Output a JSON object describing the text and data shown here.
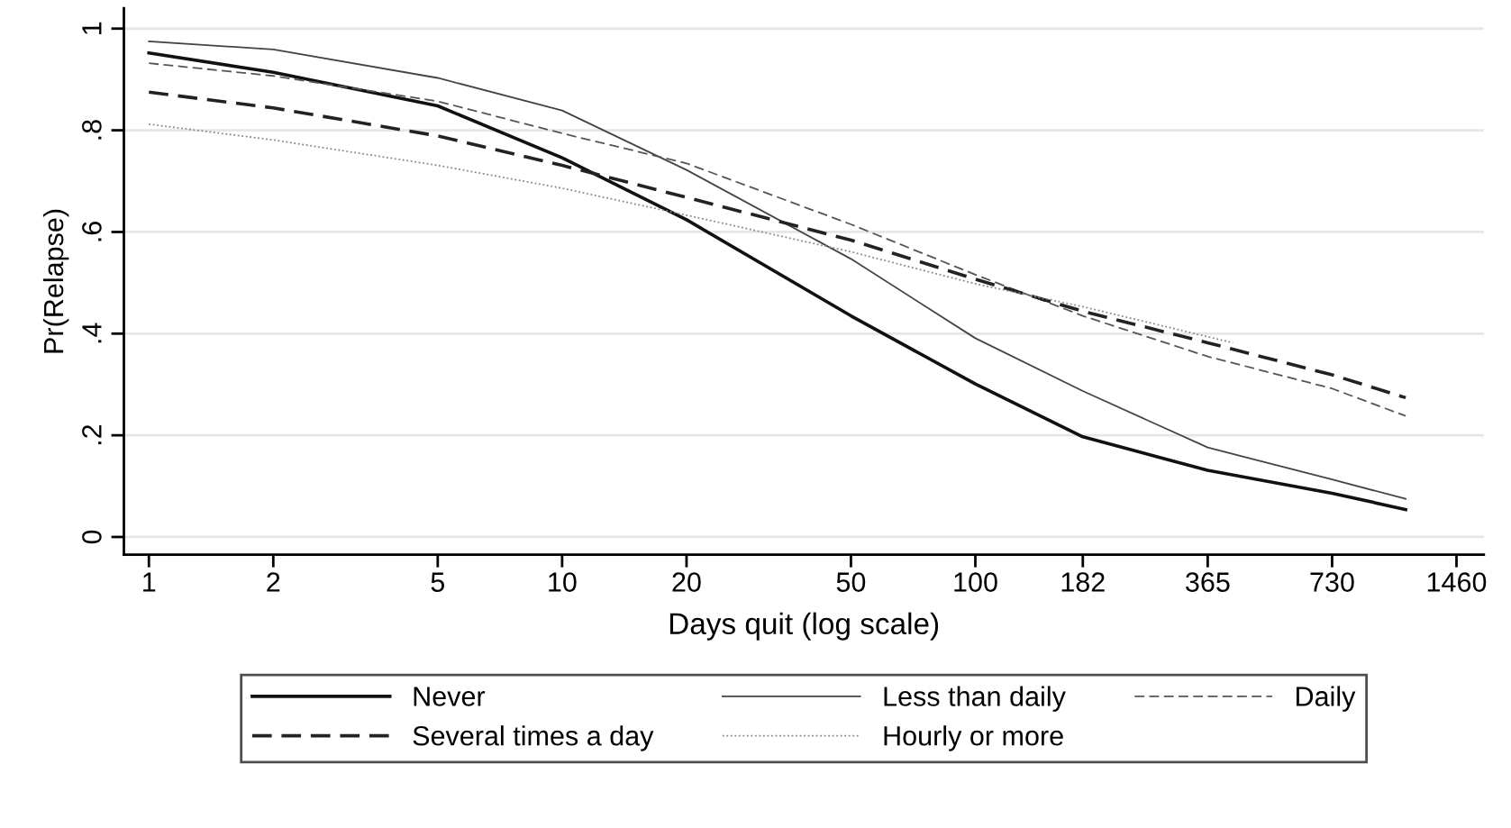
{
  "chart_data": {
    "type": "line",
    "xlabel": "Days quit (log scale)",
    "ylabel": "Pr(Relapse)",
    "log": "x",
    "xlim": [
      0.87,
      1700
    ],
    "ylim": [
      -0.035,
      1.04
    ],
    "xticks": [
      1,
      2,
      5,
      10,
      20,
      50,
      100,
      182,
      365,
      730,
      1460
    ],
    "yticks": [
      0,
      {
        "value": 0.2,
        "label": ".2"
      },
      {
        "value": 0.4,
        "label": ".4"
      },
      {
        "value": 0.6,
        "label": ".6"
      },
      {
        "value": 0.8,
        "label": ".8"
      },
      1
    ],
    "grid": "y",
    "legend": "bottom",
    "marker": "none",
    "series": [
      {
        "name": "Never",
        "color": "#111111",
        "line_style": "solid",
        "x": [
          1,
          2,
          5,
          10,
          20,
          50,
          100,
          182,
          365,
          730,
          1100
        ],
        "values": [
          0.952,
          0.914,
          0.848,
          0.746,
          0.624,
          0.435,
          0.301,
          0.197,
          0.131,
          0.086,
          0.054
        ]
      },
      {
        "name": "Less than daily",
        "color": "#444444",
        "line_style": "solid",
        "x": [
          1,
          2,
          5,
          10,
          20,
          50,
          100,
          182,
          365,
          730,
          1100
        ],
        "values": [
          0.975,
          0.959,
          0.903,
          0.839,
          0.722,
          0.547,
          0.391,
          0.287,
          0.176,
          0.113,
          0.075
        ]
      },
      {
        "name": "Daily",
        "color": "#555555",
        "line_style": "dashed",
        "x": [
          1,
          2,
          5,
          10,
          20,
          50,
          100,
          182,
          365,
          730,
          1100
        ],
        "values": [
          0.932,
          0.907,
          0.857,
          0.794,
          0.735,
          0.615,
          0.516,
          0.435,
          0.355,
          0.292,
          0.238
        ]
      },
      {
        "name": "Several times a day",
        "color": "#222222",
        "line_style": "dashed",
        "x": [
          1,
          2,
          5,
          10,
          20,
          50,
          100,
          182,
          365,
          730,
          1100
        ],
        "values": [
          0.875,
          0.844,
          0.789,
          0.731,
          0.668,
          0.584,
          0.507,
          0.444,
          0.382,
          0.319,
          0.274
        ]
      },
      {
        "name": "Hourly or more",
        "color": "#888888",
        "line_style": "dotted",
        "x": [
          1,
          2,
          5,
          10,
          20,
          50,
          100,
          182,
          420
        ],
        "values": [
          0.812,
          0.781,
          0.731,
          0.686,
          0.633,
          0.561,
          0.498,
          0.453,
          0.382
        ]
      }
    ]
  }
}
